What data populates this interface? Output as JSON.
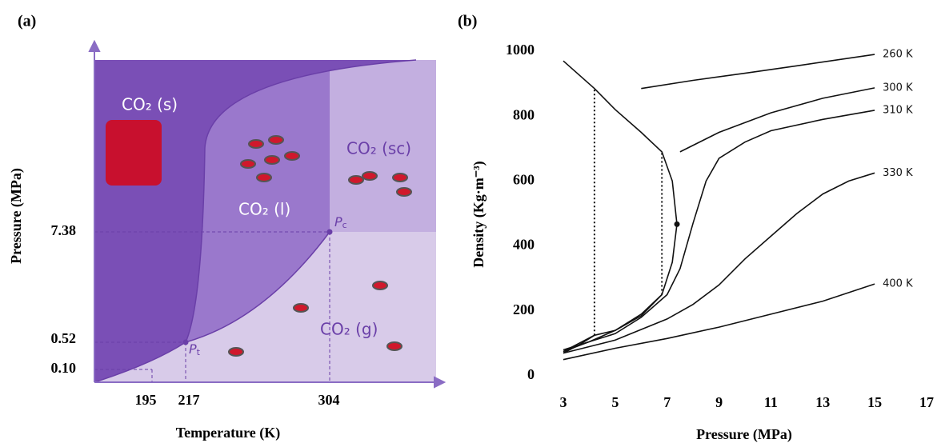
{
  "panel_a": {
    "label": "(a)",
    "y_axis_label": "Pressure (MPa)",
    "x_axis_label": "Temperature (K)",
    "y_tick_labels": [
      "7.38",
      "0.52",
      "0.10"
    ],
    "x_tick_labels": [
      "195",
      "217",
      "304"
    ],
    "phases": [
      "CO₂ (s)",
      "CO₂ (l)",
      "CO₂ (sc)",
      "CO₂ (g)"
    ],
    "points": [
      {
        "symbol": "P",
        "subscript": "c"
      },
      {
        "symbol": "P",
        "subscript": "t"
      }
    ]
  },
  "chart_data": {
    "type": "line",
    "panel_label": "(b)",
    "x_label": "Pressure (MPa)",
    "y_label": "Density (Kg·m⁻³)",
    "xlim": [
      3,
      17
    ],
    "xticks": [
      3,
      5,
      7,
      9,
      11,
      13,
      15,
      17
    ],
    "ylim": [
      0,
      1000
    ],
    "yticks": [
      0,
      200,
      400,
      600,
      800,
      1000
    ],
    "series": [
      {
        "name": "260 K",
        "color": "#111111",
        "x": [
          3,
          3.6,
          4.2,
          4.2,
          6,
          8,
          10,
          12,
          15
        ],
        "values": [
          70,
          95,
          125,
          null,
          885,
          910,
          932,
          955,
          990
        ]
      },
      {
        "name": "300 K",
        "color": "#111111",
        "x": [
          3,
          4,
          5,
          6,
          6.8,
          6.8,
          7.5,
          9,
          11,
          13,
          15
        ],
        "values": [
          75,
          105,
          140,
          190,
          250,
          null,
          690,
          750,
          810,
          855,
          887
        ]
      },
      {
        "name": "310 K",
        "color": "#111111",
        "x": [
          3,
          5,
          6,
          7,
          7.5,
          8,
          8.5,
          9,
          10,
          11,
          13,
          15
        ],
        "values": [
          80,
          130,
          180,
          250,
          330,
          470,
          600,
          670,
          720,
          755,
          790,
          818
        ]
      },
      {
        "name": "330 K",
        "color": "#111111",
        "x": [
          3,
          5,
          7,
          8,
          9,
          10,
          11,
          12,
          13,
          14,
          15
        ],
        "values": [
          70,
          110,
          175,
          220,
          280,
          360,
          430,
          500,
          560,
          600,
          625
        ]
      },
      {
        "name": "400 K",
        "color": "#111111",
        "x": [
          3,
          5,
          7,
          9,
          11,
          13,
          15
        ],
        "values": [
          50,
          85,
          115,
          150,
          190,
          230,
          283
        ]
      },
      {
        "color": "#111111",
        "x": [
          3,
          4.2,
          5,
          6,
          6.8,
          7.2,
          7.38,
          7.2,
          6.8,
          6,
          5,
          4.2,
          3
        ],
        "values": [
          970,
          885,
          820,
          750,
          690,
          600,
          467,
          350,
          250,
          185,
          140,
          125,
          75
        ]
      }
    ],
    "tie_lines": [
      {
        "x": [
          4.2,
          4.2
        ],
        "values": [
          125,
          885
        ]
      },
      {
        "x": [
          6.8,
          6.8
        ],
        "values": [
          250,
          690
        ]
      }
    ],
    "points": [
      {
        "x": 7.38,
        "y": 467
      }
    ]
  }
}
